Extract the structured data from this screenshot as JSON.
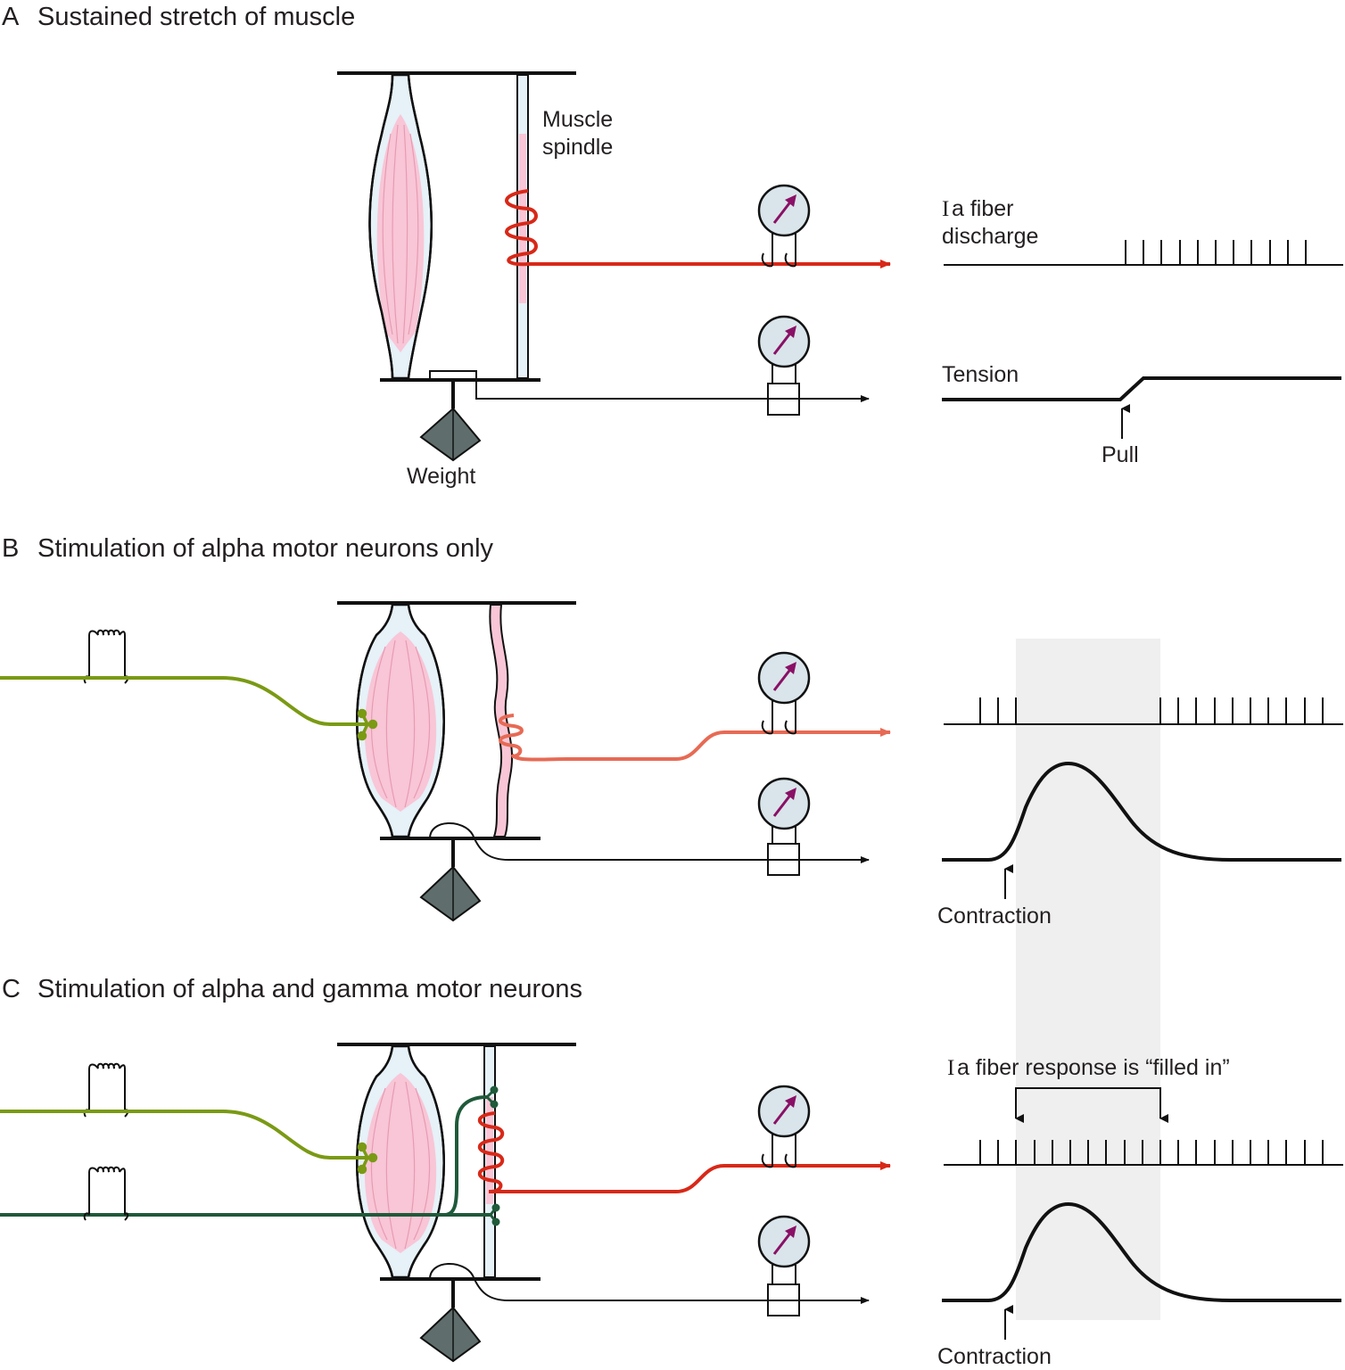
{
  "colors": {
    "muscle_fill": "#f8c6d6",
    "muscle_stripe": "#e89ab3",
    "tendon": "#e6f1f8",
    "ia_red": "#d82818",
    "ia_salmon": "#e76a55",
    "alpha_green": "#7a9a14",
    "gamma_green": "#1f5a3a",
    "gauge_fill": "#d9e5ea",
    "gauge_needle": "#8a1066",
    "weight_fill": "#5f6e6c",
    "shade": "#efefef",
    "line": "#111111"
  },
  "panel_a": {
    "letter": "A",
    "title": "Sustained stretch of muscle",
    "spindle_label_1": "Muscle",
    "spindle_label_2": "spindle",
    "weight_label": "Weight",
    "ia_label_prefix": "I",
    "ia_label_1": "a fiber",
    "ia_label_2": "discharge",
    "tension_label": "Tension",
    "pull_label": "Pull"
  },
  "panel_b": {
    "letter": "B",
    "title": "Stimulation of alpha motor neurons only",
    "contraction_label": "Contraction"
  },
  "panel_c": {
    "letter": "C",
    "title": "Stimulation of alpha and gamma motor neurons",
    "filled_prefix": "I",
    "filled_label": "a fiber response is “filled in”",
    "contraction_label": "Contraction"
  },
  "icons": [
    "gauge-icon",
    "weight-icon",
    "stimulator-coil-icon",
    "arrow-icon"
  ]
}
